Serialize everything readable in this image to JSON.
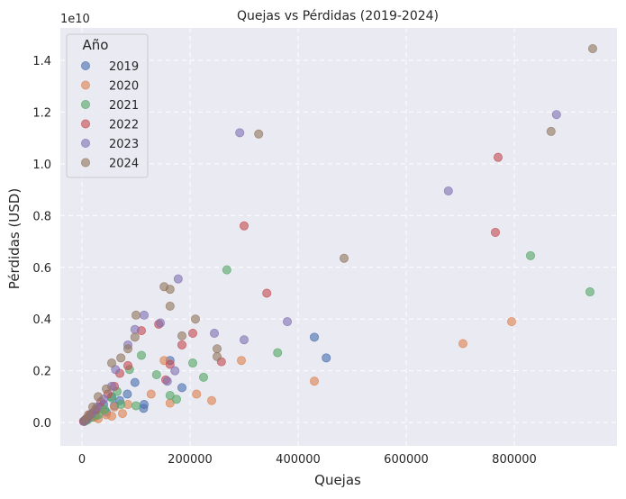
{
  "chart_data": {
    "type": "scatter",
    "title": "Quejas vs Pérdidas (2019-2024)",
    "xlabel": "Quejas",
    "ylabel": "Pérdidas (USD)",
    "y_offset_label": "1e10",
    "xlim": [
      -40000,
      990000
    ],
    "ylim": [
      -0.09,
      1.525
    ],
    "y_scale_note": "y values in units of 1e10",
    "x_ticks": [
      0,
      200000,
      400000,
      600000,
      800000
    ],
    "x_tick_labels": [
      "0",
      "200000",
      "400000",
      "600000",
      "800000"
    ],
    "y_ticks": [
      0.0,
      0.2,
      0.4,
      0.6,
      0.8,
      1.0,
      1.2,
      1.4
    ],
    "y_tick_labels": [
      "0.0",
      "0.2",
      "0.4",
      "0.6",
      "0.8",
      "1.0",
      "1.2",
      "1.4"
    ],
    "grid": true,
    "legend": {
      "title": "Año",
      "placement": "top-left"
    },
    "series": [
      {
        "name": "2019",
        "color": "#4c72b0",
        "points": [
          [
            430000,
            0.33
          ],
          [
            452000,
            0.25
          ],
          [
            98000,
            0.155
          ],
          [
            163000,
            0.24
          ],
          [
            185000,
            0.135
          ],
          [
            115000,
            0.07
          ],
          [
            114000,
            0.055
          ],
          [
            84000,
            0.11
          ],
          [
            55000,
            0.1
          ],
          [
            40000,
            0.07
          ],
          [
            28000,
            0.05
          ],
          [
            20000,
            0.035
          ],
          [
            12000,
            0.02
          ],
          [
            6000,
            0.01
          ],
          [
            3000,
            0.005
          ],
          [
            60000,
            0.065
          ],
          [
            70000,
            0.085
          ],
          [
            45000,
            0.04
          ],
          [
            33000,
            0.06
          ],
          [
            25000,
            0.025
          ]
        ]
      },
      {
        "name": "2020",
        "color": "#dd8452",
        "points": [
          [
            795000,
            0.39
          ],
          [
            705000,
            0.305
          ],
          [
            430000,
            0.16
          ],
          [
            295000,
            0.24
          ],
          [
            152000,
            0.24
          ],
          [
            163000,
            0.075
          ],
          [
            212000,
            0.11
          ],
          [
            240000,
            0.085
          ],
          [
            128000,
            0.11
          ],
          [
            75000,
            0.035
          ],
          [
            60000,
            0.06
          ],
          [
            45000,
            0.03
          ],
          [
            35000,
            0.05
          ],
          [
            22000,
            0.02
          ],
          [
            15000,
            0.03
          ],
          [
            8000,
            0.01
          ],
          [
            4000,
            0.005
          ],
          [
            85000,
            0.07
          ],
          [
            55000,
            0.025
          ],
          [
            30000,
            0.015
          ]
        ]
      },
      {
        "name": "2021",
        "color": "#55a868",
        "points": [
          [
            940000,
            0.505
          ],
          [
            830000,
            0.645
          ],
          [
            268000,
            0.59
          ],
          [
            362000,
            0.27
          ],
          [
            205000,
            0.23
          ],
          [
            225000,
            0.175
          ],
          [
            138000,
            0.185
          ],
          [
            110000,
            0.26
          ],
          [
            88000,
            0.205
          ],
          [
            100000,
            0.065
          ],
          [
            163000,
            0.105
          ],
          [
            175000,
            0.09
          ],
          [
            72000,
            0.07
          ],
          [
            55000,
            0.095
          ],
          [
            42000,
            0.05
          ],
          [
            30000,
            0.03
          ],
          [
            18000,
            0.02
          ],
          [
            10000,
            0.01
          ],
          [
            5000,
            0.005
          ],
          [
            65000,
            0.12
          ]
        ]
      },
      {
        "name": "2022",
        "color": "#c44e52",
        "points": [
          [
            770000,
            1.025
          ],
          [
            765000,
            0.735
          ],
          [
            300000,
            0.76
          ],
          [
            342000,
            0.5
          ],
          [
            110000,
            0.355
          ],
          [
            142000,
            0.38
          ],
          [
            205000,
            0.345
          ],
          [
            185000,
            0.3
          ],
          [
            258000,
            0.235
          ],
          [
            163000,
            0.225
          ],
          [
            155000,
            0.165
          ],
          [
            85000,
            0.22
          ],
          [
            70000,
            0.19
          ],
          [
            60000,
            0.14
          ],
          [
            48000,
            0.11
          ],
          [
            35000,
            0.08
          ],
          [
            25000,
            0.05
          ],
          [
            15000,
            0.03
          ],
          [
            8000,
            0.015
          ],
          [
            3000,
            0.005
          ]
        ]
      },
      {
        "name": "2023",
        "color": "#8172b3",
        "points": [
          [
            878000,
            1.19
          ],
          [
            678000,
            0.895
          ],
          [
            292000,
            1.12
          ],
          [
            178000,
            0.555
          ],
          [
            115000,
            0.415
          ],
          [
            145000,
            0.385
          ],
          [
            98000,
            0.36
          ],
          [
            85000,
            0.3
          ],
          [
            380000,
            0.39
          ],
          [
            300000,
            0.32
          ],
          [
            245000,
            0.345
          ],
          [
            172000,
            0.2
          ],
          [
            158000,
            0.16
          ],
          [
            62000,
            0.205
          ],
          [
            55000,
            0.14
          ],
          [
            40000,
            0.09
          ],
          [
            28000,
            0.06
          ],
          [
            18000,
            0.035
          ],
          [
            10000,
            0.015
          ],
          [
            4000,
            0.005
          ]
        ]
      },
      {
        "name": "2024",
        "color": "#937860",
        "points": [
          [
            945000,
            1.445
          ],
          [
            868000,
            1.125
          ],
          [
            327000,
            1.115
          ],
          [
            485000,
            0.635
          ],
          [
            152000,
            0.525
          ],
          [
            163000,
            0.515
          ],
          [
            210000,
            0.4
          ],
          [
            163000,
            0.45
          ],
          [
            100000,
            0.415
          ],
          [
            98000,
            0.33
          ],
          [
            185000,
            0.335
          ],
          [
            250000,
            0.285
          ],
          [
            250000,
            0.255
          ],
          [
            85000,
            0.285
          ],
          [
            72000,
            0.25
          ],
          [
            55000,
            0.23
          ],
          [
            45000,
            0.13
          ],
          [
            30000,
            0.1
          ],
          [
            20000,
            0.06
          ],
          [
            12000,
            0.03
          ],
          [
            6000,
            0.01
          ]
        ]
      }
    ]
  }
}
